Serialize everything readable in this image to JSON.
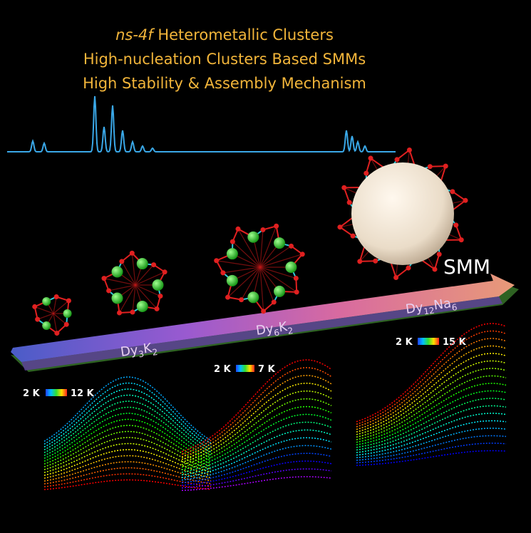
{
  "header": {
    "lines": [
      [
        "ns-4f",
        "Heterometallic Clusters"
      ],
      "High-nucleation Clusters Based SMMs",
      "High Stability & Assembly Mechanism"
    ]
  },
  "arrow_label": "SMM",
  "formulas": [
    [
      "Dy",
      "3",
      "K",
      "2"
    ],
    [
      "Dy",
      "6",
      "K",
      "2"
    ],
    [
      "Dy",
      "12",
      "Na",
      "6"
    ]
  ],
  "temperature_scales": [
    [
      "2 K",
      "12 K"
    ],
    [
      "2 K",
      "7 K"
    ],
    [
      "2 K",
      "15 K"
    ]
  ]
}
